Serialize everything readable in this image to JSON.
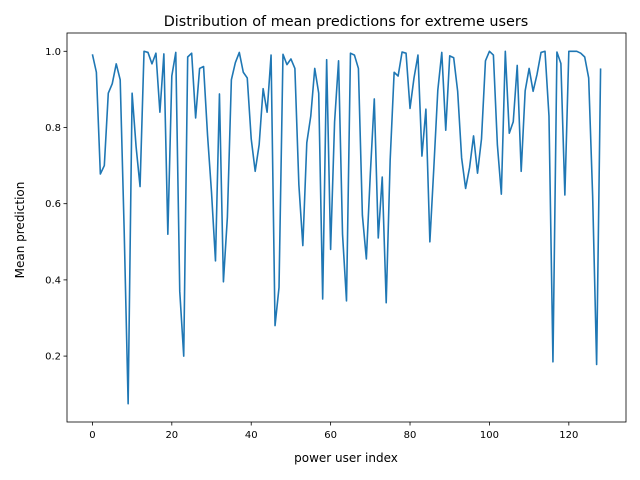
{
  "chart_data": {
    "type": "line",
    "title": "Distribution of mean predictions for extreme users",
    "xlabel": "power user index",
    "ylabel": "Mean prediction",
    "xlim": [
      -6.4,
      134.4
    ],
    "ylim": [
      0.027,
      1.048
    ],
    "xticks": [
      0,
      20,
      40,
      60,
      80,
      100,
      120
    ],
    "yticks": [
      0.2,
      0.4,
      0.6,
      0.8,
      1.0
    ],
    "ytick_labels": [
      "0.2",
      "0.4",
      "0.6",
      "0.8",
      "1.0"
    ],
    "grid": false,
    "line_color": "#1f77b4",
    "series": [
      {
        "x": [
          0,
          1,
          2,
          3,
          4,
          5,
          6,
          7,
          8,
          9,
          10,
          11,
          12,
          13,
          14,
          15,
          16,
          17,
          18,
          19,
          20,
          21,
          22,
          23,
          24,
          25,
          26,
          27,
          28,
          29,
          30,
          31,
          32,
          33,
          34,
          35,
          36,
          37,
          38,
          39,
          40,
          41,
          42,
          43,
          44,
          45,
          46,
          47,
          48,
          49,
          50,
          51,
          52,
          53,
          54,
          55,
          56,
          57,
          58,
          59,
          60,
          61,
          62,
          63,
          64,
          65,
          66,
          67,
          68,
          69,
          70,
          71,
          72,
          73,
          74,
          75,
          76,
          77,
          78,
          79,
          80,
          81,
          82,
          83,
          84,
          85,
          86,
          87,
          88,
          89,
          90,
          91,
          92,
          93,
          94,
          95,
          96,
          97,
          98,
          99,
          100,
          101,
          102,
          103,
          104,
          105,
          106,
          107,
          108,
          109,
          110,
          111,
          112,
          113,
          114,
          115,
          116,
          117,
          118,
          119,
          120,
          121,
          122,
          123,
          124,
          125,
          126,
          127,
          128
        ],
        "values": [
          0.992,
          0.945,
          0.678,
          0.7,
          0.89,
          0.915,
          0.967,
          0.925,
          0.53,
          0.075,
          0.89,
          0.75,
          0.645,
          1.0,
          0.997,
          0.967,
          0.995,
          0.84,
          0.993,
          0.52,
          0.935,
          0.997,
          0.37,
          0.2,
          0.985,
          0.995,
          0.825,
          0.955,
          0.96,
          0.78,
          0.63,
          0.45,
          0.888,
          0.395,
          0.565,
          0.925,
          0.97,
          0.997,
          0.945,
          0.93,
          0.77,
          0.685,
          0.755,
          0.902,
          0.84,
          0.99,
          0.28,
          0.38,
          0.992,
          0.965,
          0.98,
          0.955,
          0.65,
          0.49,
          0.76,
          0.83,
          0.955,
          0.89,
          0.35,
          0.978,
          0.48,
          0.815,
          0.975,
          0.52,
          0.345,
          0.995,
          0.99,
          0.955,
          0.57,
          0.455,
          0.678,
          0.875,
          0.51,
          0.67,
          0.34,
          0.715,
          0.945,
          0.935,
          0.998,
          0.995,
          0.85,
          0.93,
          0.99,
          0.725,
          0.848,
          0.5,
          0.695,
          0.898,
          0.997,
          0.793,
          0.988,
          0.983,
          0.895,
          0.72,
          0.64,
          0.695,
          0.778,
          0.68,
          0.77,
          0.975,
          1.0,
          0.99,
          0.755,
          0.625,
          1.0,
          0.785,
          0.815,
          0.963,
          0.685,
          0.896,
          0.955,
          0.895,
          0.94,
          0.997,
          1.0,
          0.83,
          0.185,
          0.998,
          0.968,
          0.623,
          1.0,
          1.0,
          1.0,
          0.995,
          0.985,
          0.93,
          0.62,
          0.178,
          0.955
        ]
      }
    ]
  }
}
